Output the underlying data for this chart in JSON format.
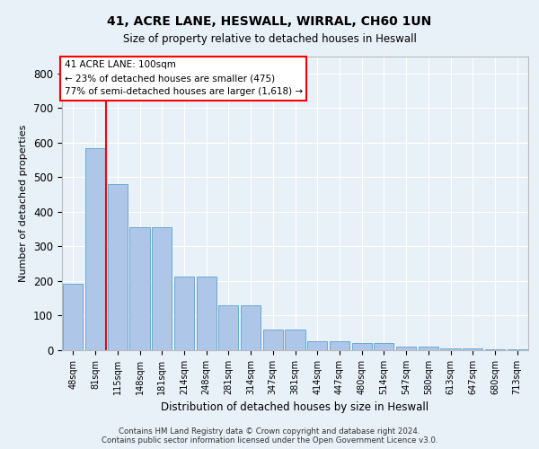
{
  "title1": "41, ACRE LANE, HESWALL, WIRRAL, CH60 1UN",
  "title2": "Size of property relative to detached houses in Heswall",
  "xlabel": "Distribution of detached houses by size in Heswall",
  "ylabel": "Number of detached properties",
  "footnote": "Contains HM Land Registry data © Crown copyright and database right 2024.\nContains public sector information licensed under the Open Government Licence v3.0.",
  "categories": [
    "48sqm",
    "81sqm",
    "115sqm",
    "148sqm",
    "181sqm",
    "214sqm",
    "248sqm",
    "281sqm",
    "314sqm",
    "347sqm",
    "381sqm",
    "414sqm",
    "447sqm",
    "480sqm",
    "514sqm",
    "547sqm",
    "580sqm",
    "613sqm",
    "647sqm",
    "680sqm",
    "713sqm"
  ],
  "values": [
    192,
    585,
    480,
    355,
    355,
    213,
    213,
    130,
    130,
    60,
    60,
    25,
    25,
    20,
    20,
    10,
    10,
    4,
    4,
    2,
    2
  ],
  "bar_color": "#aec6e8",
  "bar_edge_color": "#6aaad4",
  "bg_color": "#e8f0f8",
  "red_line_x": 1.5,
  "annotation_text": "41 ACRE LANE: 100sqm\n← 23% of detached houses are smaller (475)\n77% of semi-detached houses are larger (1,618) →",
  "annotation_box_color": "white",
  "annotation_box_edge": "red",
  "ylim": [
    0,
    850
  ],
  "yticks": [
    0,
    100,
    200,
    300,
    400,
    500,
    600,
    700,
    800
  ]
}
